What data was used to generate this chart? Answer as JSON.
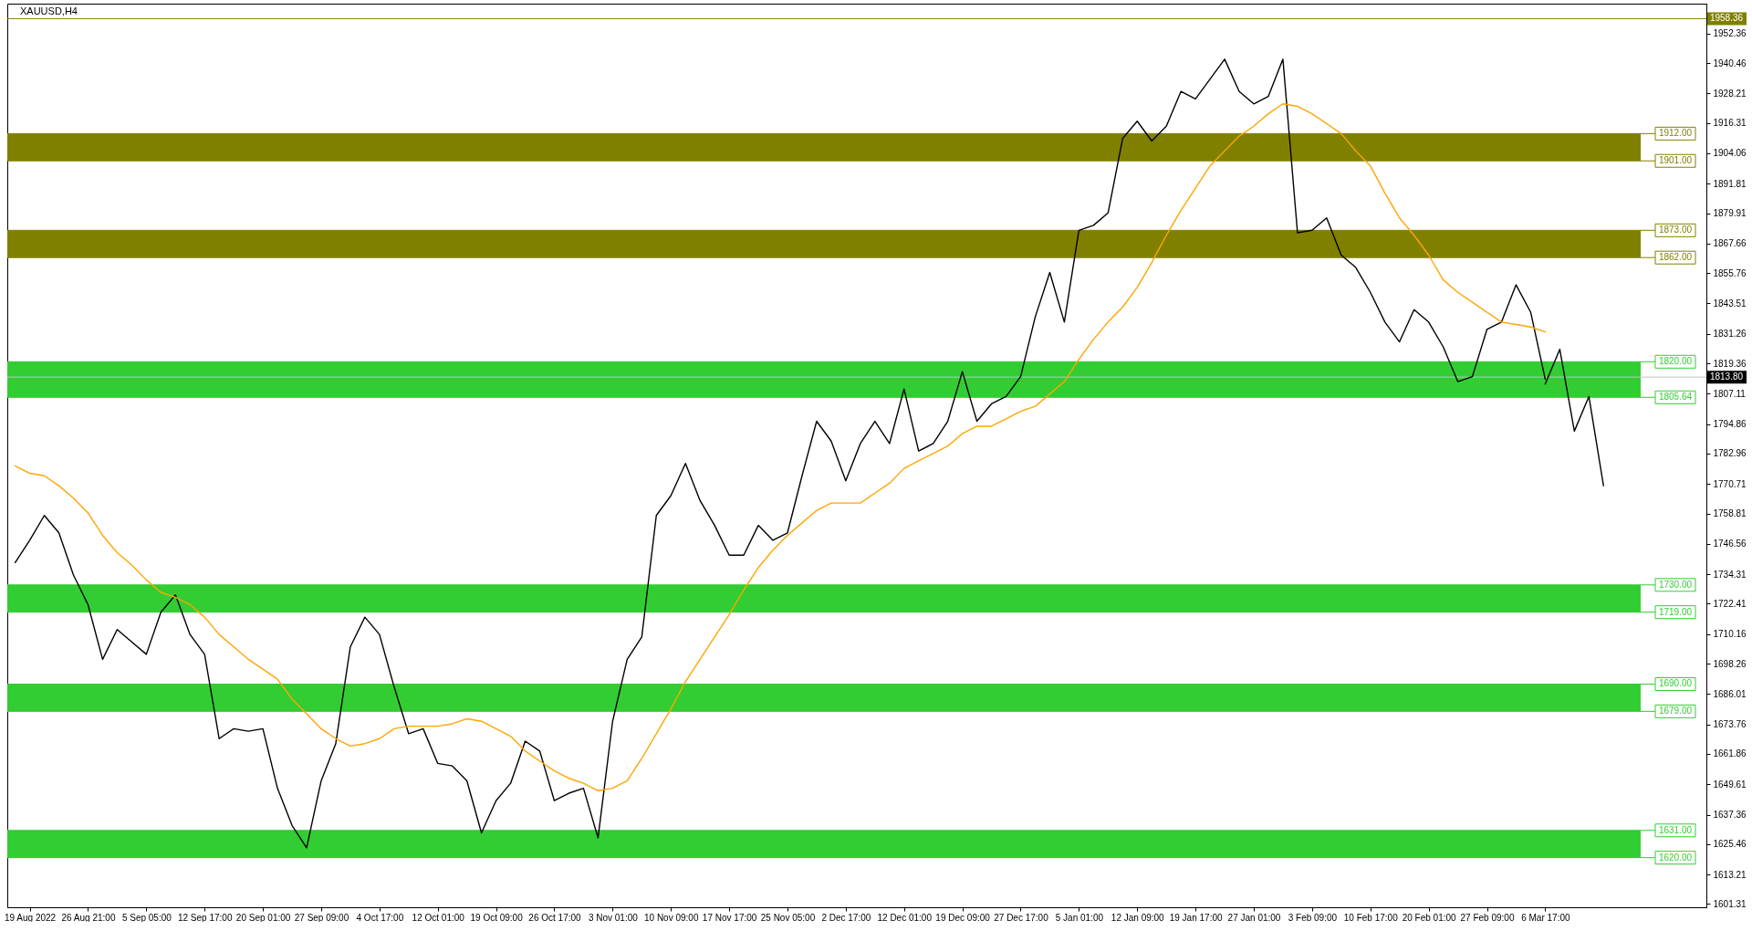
{
  "chart_data": {
    "type": "line",
    "title": "XAUUSD,H4",
    "categories": [
      null,
      "19 Aug 2022",
      null,
      null,
      null,
      "26 Aug 21:00",
      null,
      null,
      null,
      "5 Sep 05:00",
      null,
      null,
      null,
      "12 Sep 17:00",
      null,
      null,
      null,
      "20 Sep 01:00",
      null,
      null,
      null,
      "27 Sep 09:00",
      null,
      null,
      null,
      "4 Oct 17:00",
      null,
      null,
      null,
      "12 Oct 01:00",
      null,
      null,
      null,
      "19 Oct 09:00",
      null,
      null,
      null,
      "26 Oct 17:00",
      null,
      null,
      null,
      "3 Nov 01:00",
      null,
      null,
      null,
      "10 Nov 09:00",
      null,
      null,
      null,
      "17 Nov 17:00",
      null,
      null,
      null,
      "25 Nov 05:00",
      null,
      null,
      null,
      "2 Dec 17:00",
      null,
      null,
      null,
      "12 Dec 01:00",
      null,
      null,
      null,
      "19 Dec 09:00",
      null,
      null,
      null,
      "27 Dec 17:00",
      null,
      null,
      null,
      "5 Jan 01:00",
      null,
      null,
      null,
      "12 Jan 09:00",
      null,
      null,
      null,
      "19 Jan 17:00",
      null,
      null,
      null,
      "27 Jan 01:00",
      null,
      null,
      null,
      "3 Feb 09:00",
      null,
      null,
      null,
      "10 Feb 17:00",
      null,
      null,
      null,
      "20 Feb 01:00",
      null,
      null,
      null,
      "27 Feb 09:00",
      null,
      null,
      null,
      "6 Mar 17:00",
      null,
      null,
      null,
      null,
      null,
      null,
      null,
      null,
      null,
      null,
      null
    ],
    "series": [
      {
        "color": "#000000",
        "values": [
          1739,
          1748,
          1758,
          1751,
          1734,
          1722,
          1700,
          1712,
          1707,
          1702,
          1719,
          1726,
          1710,
          1702,
          1668,
          1672,
          1671,
          1672,
          1648,
          1633,
          1624,
          1651,
          1666,
          1705,
          1717,
          1710,
          1689,
          1670,
          1672,
          1658,
          1657,
          1651,
          1630,
          1643,
          1650,
          1667,
          1663,
          1643,
          1646,
          1648,
          1628,
          1675,
          1700,
          1709,
          1758,
          1766,
          1779,
          1764,
          1754,
          1742,
          1742,
          1754,
          1748,
          1751,
          1774,
          1796,
          1788,
          1772,
          1787,
          1796,
          1787,
          1809,
          1784,
          1787,
          1796,
          1816,
          1796,
          1803,
          1806,
          1814,
          1838,
          1856,
          1836,
          1873,
          1875,
          1880,
          1910,
          1917,
          1909,
          1915,
          1929,
          1926,
          1934,
          1942,
          1929,
          1924,
          1927,
          1942,
          1872,
          1873,
          1878,
          1863,
          1858,
          1848,
          1836,
          1828,
          1841,
          1836,
          1826,
          1812,
          1814,
          1833,
          1836,
          1851,
          1840,
          1813,
          null,
          null,
          null,
          null,
          null,
          null,
          null,
          null,
          null,
          null,
          null
        ]
      },
      {
        "color": "#ffa500",
        "values": [
          1778,
          1775,
          1774,
          1770,
          1765,
          1759,
          1750,
          1743,
          1738,
          1732,
          1727,
          1725,
          1722,
          1717,
          1710,
          1705,
          1700,
          1696,
          1692,
          1684,
          1678,
          1672,
          1668,
          1665,
          1666,
          1668,
          1672,
          1673,
          1673,
          1673,
          1674,
          1676,
          1675,
          1672,
          1669,
          1663,
          1659,
          1655,
          1652,
          1650,
          1647,
          1648,
          1651,
          1660,
          1670,
          1680,
          1691,
          1700,
          1709,
          1718,
          1728,
          1737,
          1744,
          1750,
          1755,
          1760,
          1763,
          1763,
          1763,
          1767,
          1771,
          1777,
          1780,
          1783,
          1786,
          1791,
          1794,
          1794,
          1797,
          1800,
          1802,
          1807,
          1812,
          1821,
          1829,
          1836,
          1842,
          1850,
          1860,
          1871,
          1881,
          1890,
          1899,
          1905,
          1911,
          1915,
          1920,
          1924,
          1923,
          1920,
          1916,
          1912,
          1905,
          1899,
          1888,
          1878,
          1871,
          1863,
          1853,
          1848,
          1844,
          1840,
          1836,
          1835,
          1834,
          1832,
          null,
          null,
          null,
          null,
          null,
          null,
          null,
          null,
          null,
          null,
          null
        ]
      },
      {
        "color": "#000000",
        "values": [
          null,
          null,
          null,
          null,
          null,
          null,
          null,
          null,
          null,
          null,
          null,
          null,
          null,
          null,
          null,
          null,
          null,
          null,
          null,
          null,
          null,
          null,
          null,
          null,
          null,
          null,
          null,
          null,
          null,
          null,
          null,
          null,
          null,
          null,
          null,
          null,
          null,
          null,
          null,
          null,
          null,
          null,
          null,
          null,
          null,
          null,
          null,
          null,
          null,
          null,
          null,
          null,
          null,
          null,
          null,
          null,
          null,
          null,
          null,
          null,
          null,
          null,
          null,
          null,
          null,
          null,
          null,
          null,
          null,
          null,
          null,
          null,
          null,
          null,
          null,
          null,
          null,
          null,
          null,
          null,
          null,
          null,
          null,
          null,
          null,
          null,
          null,
          null,
          null,
          null,
          null,
          null,
          null,
          null,
          null,
          null,
          null,
          null,
          null,
          null,
          null,
          null,
          null,
          null,
          null,
          1811,
          1825,
          1792,
          1806,
          1770,
          null,
          null,
          null,
          null,
          null,
          null,
          null
        ]
      }
    ],
    "ylim": [
      1600,
      1964.4
    ],
    "yticks": [
      1952.36,
      1940.46,
      1928.21,
      1916.31,
      1904.06,
      1891.81,
      1879.91,
      1867.66,
      1855.76,
      1843.51,
      1831.26,
      1819.36,
      1807.11,
      1794.86,
      1782.96,
      1770.71,
      1758.81,
      1746.56,
      1734.31,
      1722.41,
      1710.16,
      1698.26,
      1686.01,
      1673.76,
      1661.86,
      1649.61,
      1637.36,
      1625.46,
      1613.21,
      1601.31
    ],
    "bands": [
      {
        "axis": "y",
        "from": 1901,
        "to": 1912,
        "color": "#808000"
      },
      {
        "axis": "y",
        "from": 1862,
        "to": 1873,
        "color": "#808000"
      },
      {
        "axis": "y",
        "from": 1805.64,
        "to": 1820,
        "color": "#32cd32"
      },
      {
        "axis": "y",
        "from": 1719,
        "to": 1730,
        "color": "#32cd32"
      },
      {
        "axis": "y",
        "from": 1679,
        "to": 1690,
        "color": "#32cd32"
      },
      {
        "axis": "y",
        "from": 1620,
        "to": 1631,
        "color": "#32cd32"
      }
    ],
    "ref_lines": [
      {
        "axis": "y",
        "value": 1958.36,
        "label": "1958.36",
        "color": "#808000"
      },
      {
        "axis": "y",
        "value": 1813.8,
        "label": "1813.80",
        "color": "#c0c0c0"
      },
      {
        "axis": "y",
        "value": 1912,
        "label": "1912.00",
        "color": "#808000"
      },
      {
        "axis": "y",
        "value": 1901,
        "label": "1901.00",
        "color": "#808000"
      },
      {
        "axis": "y",
        "value": 1873,
        "label": "1873.00",
        "color": "#808000"
      },
      {
        "axis": "y",
        "value": 1862,
        "label": "1862.00",
        "color": "#808000"
      },
      {
        "axis": "y",
        "value": 1820,
        "label": "1820.00",
        "color": "#32cd32"
      },
      {
        "axis": "y",
        "value": 1805.64,
        "label": "1805.64",
        "color": "#32cd32"
      },
      {
        "axis": "y",
        "value": 1730,
        "label": "1730.00",
        "color": "#32cd32"
      },
      {
        "axis": "y",
        "value": 1719,
        "label": "1719.00",
        "color": "#32cd32"
      },
      {
        "axis": "y",
        "value": 1690,
        "label": "1690.00",
        "color": "#32cd32"
      },
      {
        "axis": "y",
        "value": 1679,
        "label": "1679.00",
        "color": "#32cd32"
      },
      {
        "axis": "y",
        "value": 1631,
        "label": "1631.00",
        "color": "#32cd32"
      },
      {
        "axis": "y",
        "value": 1620,
        "label": "1620.00",
        "color": "#32cd32"
      }
    ]
  }
}
